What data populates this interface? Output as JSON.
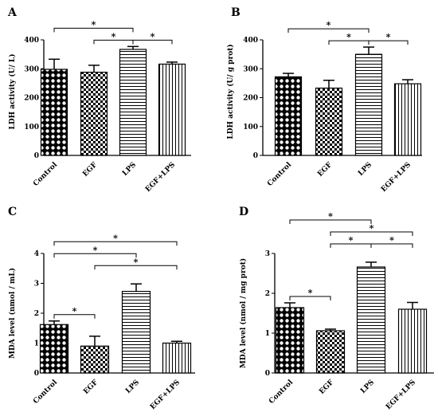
{
  "chart_data": [
    {
      "type": "bar",
      "panel": "A",
      "categories": [
        "Control",
        "EGF",
        "LPS",
        "EGF+LPS"
      ],
      "values": [
        298,
        288,
        367,
        316
      ],
      "errors": [
        35,
        24,
        10,
        7
      ],
      "ylabel": "LDH activity (U/ L)",
      "ylim": [
        0,
        400
      ],
      "yticks": [
        "0",
        "100",
        "200",
        "300",
        "400"
      ],
      "significance": [
        {
          "from": 0,
          "to": 2,
          "level": 1,
          "label": "*"
        },
        {
          "from": 1,
          "to": 2,
          "level": 0,
          "label": "*"
        },
        {
          "from": 2,
          "to": 3,
          "level": 0,
          "label": "*"
        }
      ]
    },
    {
      "type": "bar",
      "panel": "B",
      "categories": [
        "Control",
        "EGF",
        "LPS",
        "EGF+LPS"
      ],
      "values": [
        272,
        233,
        350,
        248
      ],
      "errors": [
        12,
        27,
        25,
        14
      ],
      "ylabel": "LDH activity (U/ g prot)",
      "ylim": [
        0,
        400
      ],
      "yticks": [
        "0",
        "100",
        "200",
        "300",
        "400"
      ],
      "significance": [
        {
          "from": 0,
          "to": 2,
          "level": 1,
          "label": "*"
        },
        {
          "from": 1,
          "to": 2,
          "level": 0,
          "label": "*"
        },
        {
          "from": 2,
          "to": 3,
          "level": 0,
          "label": "*"
        }
      ]
    },
    {
      "type": "bar",
      "panel": "C",
      "categories": [
        "Control",
        "EGF",
        "LPS",
        "EGF+LPS"
      ],
      "values": [
        1.62,
        0.9,
        2.73,
        1.0
      ],
      "errors": [
        0.12,
        0.33,
        0.25,
        0.06
      ],
      "ylabel": "MDA level (nmol / mL)",
      "ylim": [
        0,
        4
      ],
      "yticks": [
        "0",
        "1",
        "2",
        "3",
        "4"
      ],
      "significance": [
        {
          "from": 0,
          "to": 1,
          "level": 0,
          "label": "*"
        },
        {
          "from": 0,
          "to": 2,
          "level": 2,
          "label": "*"
        },
        {
          "from": 1,
          "to": 3,
          "level": 1,
          "label": "*"
        },
        {
          "from": 0,
          "to": 3,
          "level": 3,
          "label": "*"
        }
      ]
    },
    {
      "type": "bar",
      "panel": "D",
      "categories": [
        "Control",
        "EGF",
        "LPS",
        "EGF+LPS"
      ],
      "values": [
        1.64,
        1.06,
        2.66,
        1.6
      ],
      "errors": [
        0.12,
        0.04,
        0.12,
        0.17
      ],
      "ylabel": "MDA level (nmol / mg prot)",
      "ylim": [
        0,
        3
      ],
      "yticks": [
        "0",
        "1",
        "2",
        "3"
      ],
      "significance": [
        {
          "from": 0,
          "to": 1,
          "level": 0,
          "label": "*"
        },
        {
          "from": 1,
          "to": 2,
          "level": 1,
          "label": "*"
        },
        {
          "from": 2,
          "to": 3,
          "level": 1,
          "label": "*"
        },
        {
          "from": 1,
          "to": 3,
          "level": 2,
          "label": "*"
        },
        {
          "from": 0,
          "to": 2,
          "level": 3,
          "label": "*"
        }
      ]
    }
  ]
}
